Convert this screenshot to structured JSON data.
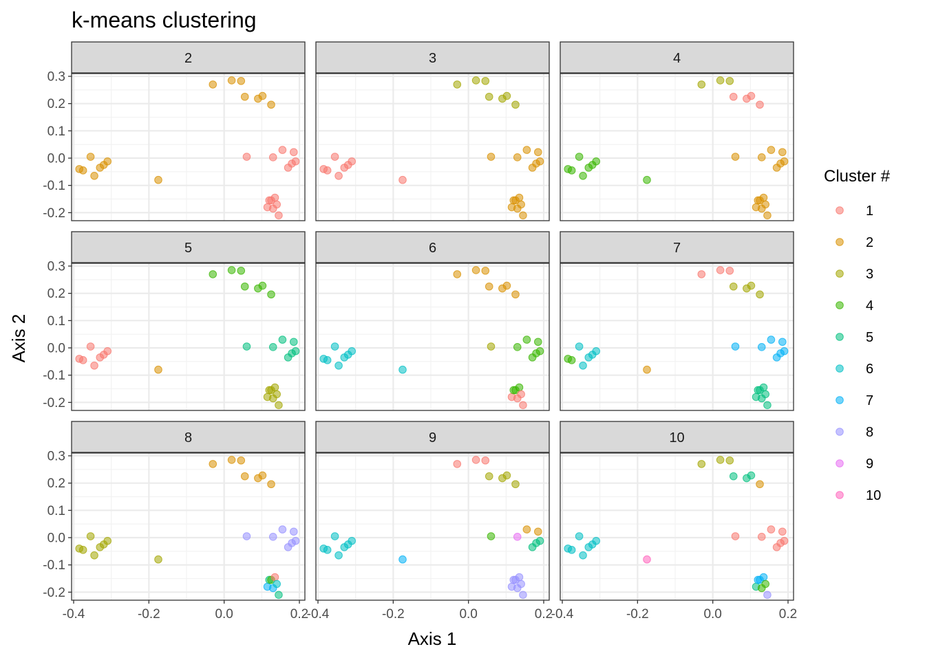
{
  "chart_data": {
    "type": "scatter",
    "title": "k-means clustering",
    "xlabel": "Axis 1",
    "ylabel": "Axis 2",
    "xlim": [
      -0.4,
      0.2
    ],
    "ylim": [
      -0.23,
      0.31
    ],
    "x_ticks": [
      "-0.4",
      "-0.2",
      "0.0",
      "0.2"
    ],
    "y_ticks": [
      "-0.2",
      "-0.1",
      "0.0",
      "0.1",
      "0.2",
      "0.3"
    ],
    "grid": true,
    "legend_position": "right",
    "legend": {
      "title": "Cluster #",
      "entries": [
        {
          "label": "1",
          "color": "#F8766D"
        },
        {
          "label": "2",
          "color": "#D89000"
        },
        {
          "label": "3",
          "color": "#A3A500"
        },
        {
          "label": "4",
          "color": "#39B600"
        },
        {
          "label": "5",
          "color": "#00BF7D"
        },
        {
          "label": "6",
          "color": "#00BFC4"
        },
        {
          "label": "7",
          "color": "#00B0F6"
        },
        {
          "label": "8",
          "color": "#9590FF"
        },
        {
          "label": "9",
          "color": "#E76BF3"
        },
        {
          "label": "10",
          "color": "#FF62BC"
        }
      ]
    },
    "points": [
      [
        -0.385,
        -0.04
      ],
      [
        -0.375,
        -0.045
      ],
      [
        -0.355,
        0.005
      ],
      [
        -0.345,
        -0.065
      ],
      [
        -0.33,
        -0.035
      ],
      [
        -0.32,
        -0.025
      ],
      [
        -0.31,
        -0.012
      ],
      [
        -0.175,
        -0.08
      ],
      [
        -0.03,
        0.27
      ],
      [
        0.02,
        0.285
      ],
      [
        0.045,
        0.283
      ],
      [
        0.055,
        0.225
      ],
      [
        0.09,
        0.218
      ],
      [
        0.102,
        0.228
      ],
      [
        0.125,
        0.196
      ],
      [
        0.06,
        0.005
      ],
      [
        0.13,
        0.003
      ],
      [
        0.155,
        0.03
      ],
      [
        0.17,
        -0.035
      ],
      [
        0.18,
        -0.02
      ],
      [
        0.185,
        0.022
      ],
      [
        0.19,
        -0.012
      ],
      [
        0.115,
        -0.18
      ],
      [
        0.12,
        -0.155
      ],
      [
        0.125,
        -0.155
      ],
      [
        0.13,
        -0.185
      ],
      [
        0.135,
        -0.145
      ],
      [
        0.14,
        -0.17
      ],
      [
        0.145,
        -0.21
      ]
    ],
    "panels": [
      {
        "k": "2",
        "clusters": [
          2,
          2,
          2,
          2,
          2,
          2,
          2,
          2,
          2,
          2,
          2,
          2,
          2,
          2,
          2,
          1,
          1,
          1,
          1,
          1,
          1,
          1,
          1,
          1,
          1,
          1,
          1,
          1,
          1
        ]
      },
      {
        "k": "3",
        "clusters": [
          1,
          1,
          1,
          1,
          1,
          1,
          1,
          1,
          3,
          3,
          3,
          3,
          3,
          3,
          3,
          2,
          2,
          2,
          2,
          2,
          2,
          2,
          2,
          2,
          2,
          2,
          2,
          2,
          2
        ]
      },
      {
        "k": "4",
        "clusters": [
          4,
          4,
          4,
          4,
          4,
          4,
          4,
          4,
          3,
          3,
          3,
          1,
          1,
          1,
          1,
          2,
          2,
          2,
          2,
          2,
          2,
          2,
          2,
          2,
          2,
          2,
          2,
          2,
          2
        ]
      },
      {
        "k": "5",
        "clusters": [
          1,
          1,
          1,
          1,
          1,
          1,
          1,
          2,
          4,
          4,
          4,
          4,
          4,
          4,
          4,
          5,
          5,
          5,
          5,
          5,
          5,
          5,
          3,
          3,
          3,
          3,
          3,
          3,
          3
        ]
      },
      {
        "k": "6",
        "clusters": [
          6,
          6,
          6,
          6,
          6,
          6,
          6,
          6,
          2,
          2,
          2,
          2,
          2,
          2,
          2,
          3,
          4,
          4,
          4,
          4,
          4,
          4,
          1,
          4,
          4,
          1,
          4,
          1,
          1
        ]
      },
      {
        "k": "7",
        "clusters": [
          4,
          4,
          6,
          6,
          6,
          6,
          6,
          2,
          1,
          1,
          1,
          3,
          3,
          3,
          3,
          7,
          7,
          7,
          7,
          7,
          7,
          7,
          5,
          5,
          5,
          5,
          5,
          5,
          5
        ]
      },
      {
        "k": "8",
        "clusters": [
          3,
          3,
          3,
          3,
          3,
          3,
          3,
          3,
          2,
          2,
          2,
          2,
          2,
          2,
          2,
          8,
          8,
          8,
          8,
          8,
          8,
          8,
          7,
          5,
          4,
          7,
          1,
          6,
          5
        ]
      },
      {
        "k": "9",
        "clusters": [
          6,
          6,
          6,
          6,
          6,
          6,
          6,
          7,
          1,
          1,
          1,
          3,
          3,
          3,
          3,
          4,
          9,
          2,
          5,
          5,
          2,
          5,
          8,
          8,
          8,
          8,
          8,
          8,
          8
        ]
      },
      {
        "k": "10",
        "clusters": [
          6,
          6,
          6,
          6,
          6,
          6,
          6,
          10,
          3,
          3,
          3,
          5,
          5,
          5,
          2,
          1,
          1,
          1,
          1,
          1,
          1,
          1,
          5,
          7,
          7,
          4,
          7,
          4,
          8
        ]
      }
    ]
  }
}
